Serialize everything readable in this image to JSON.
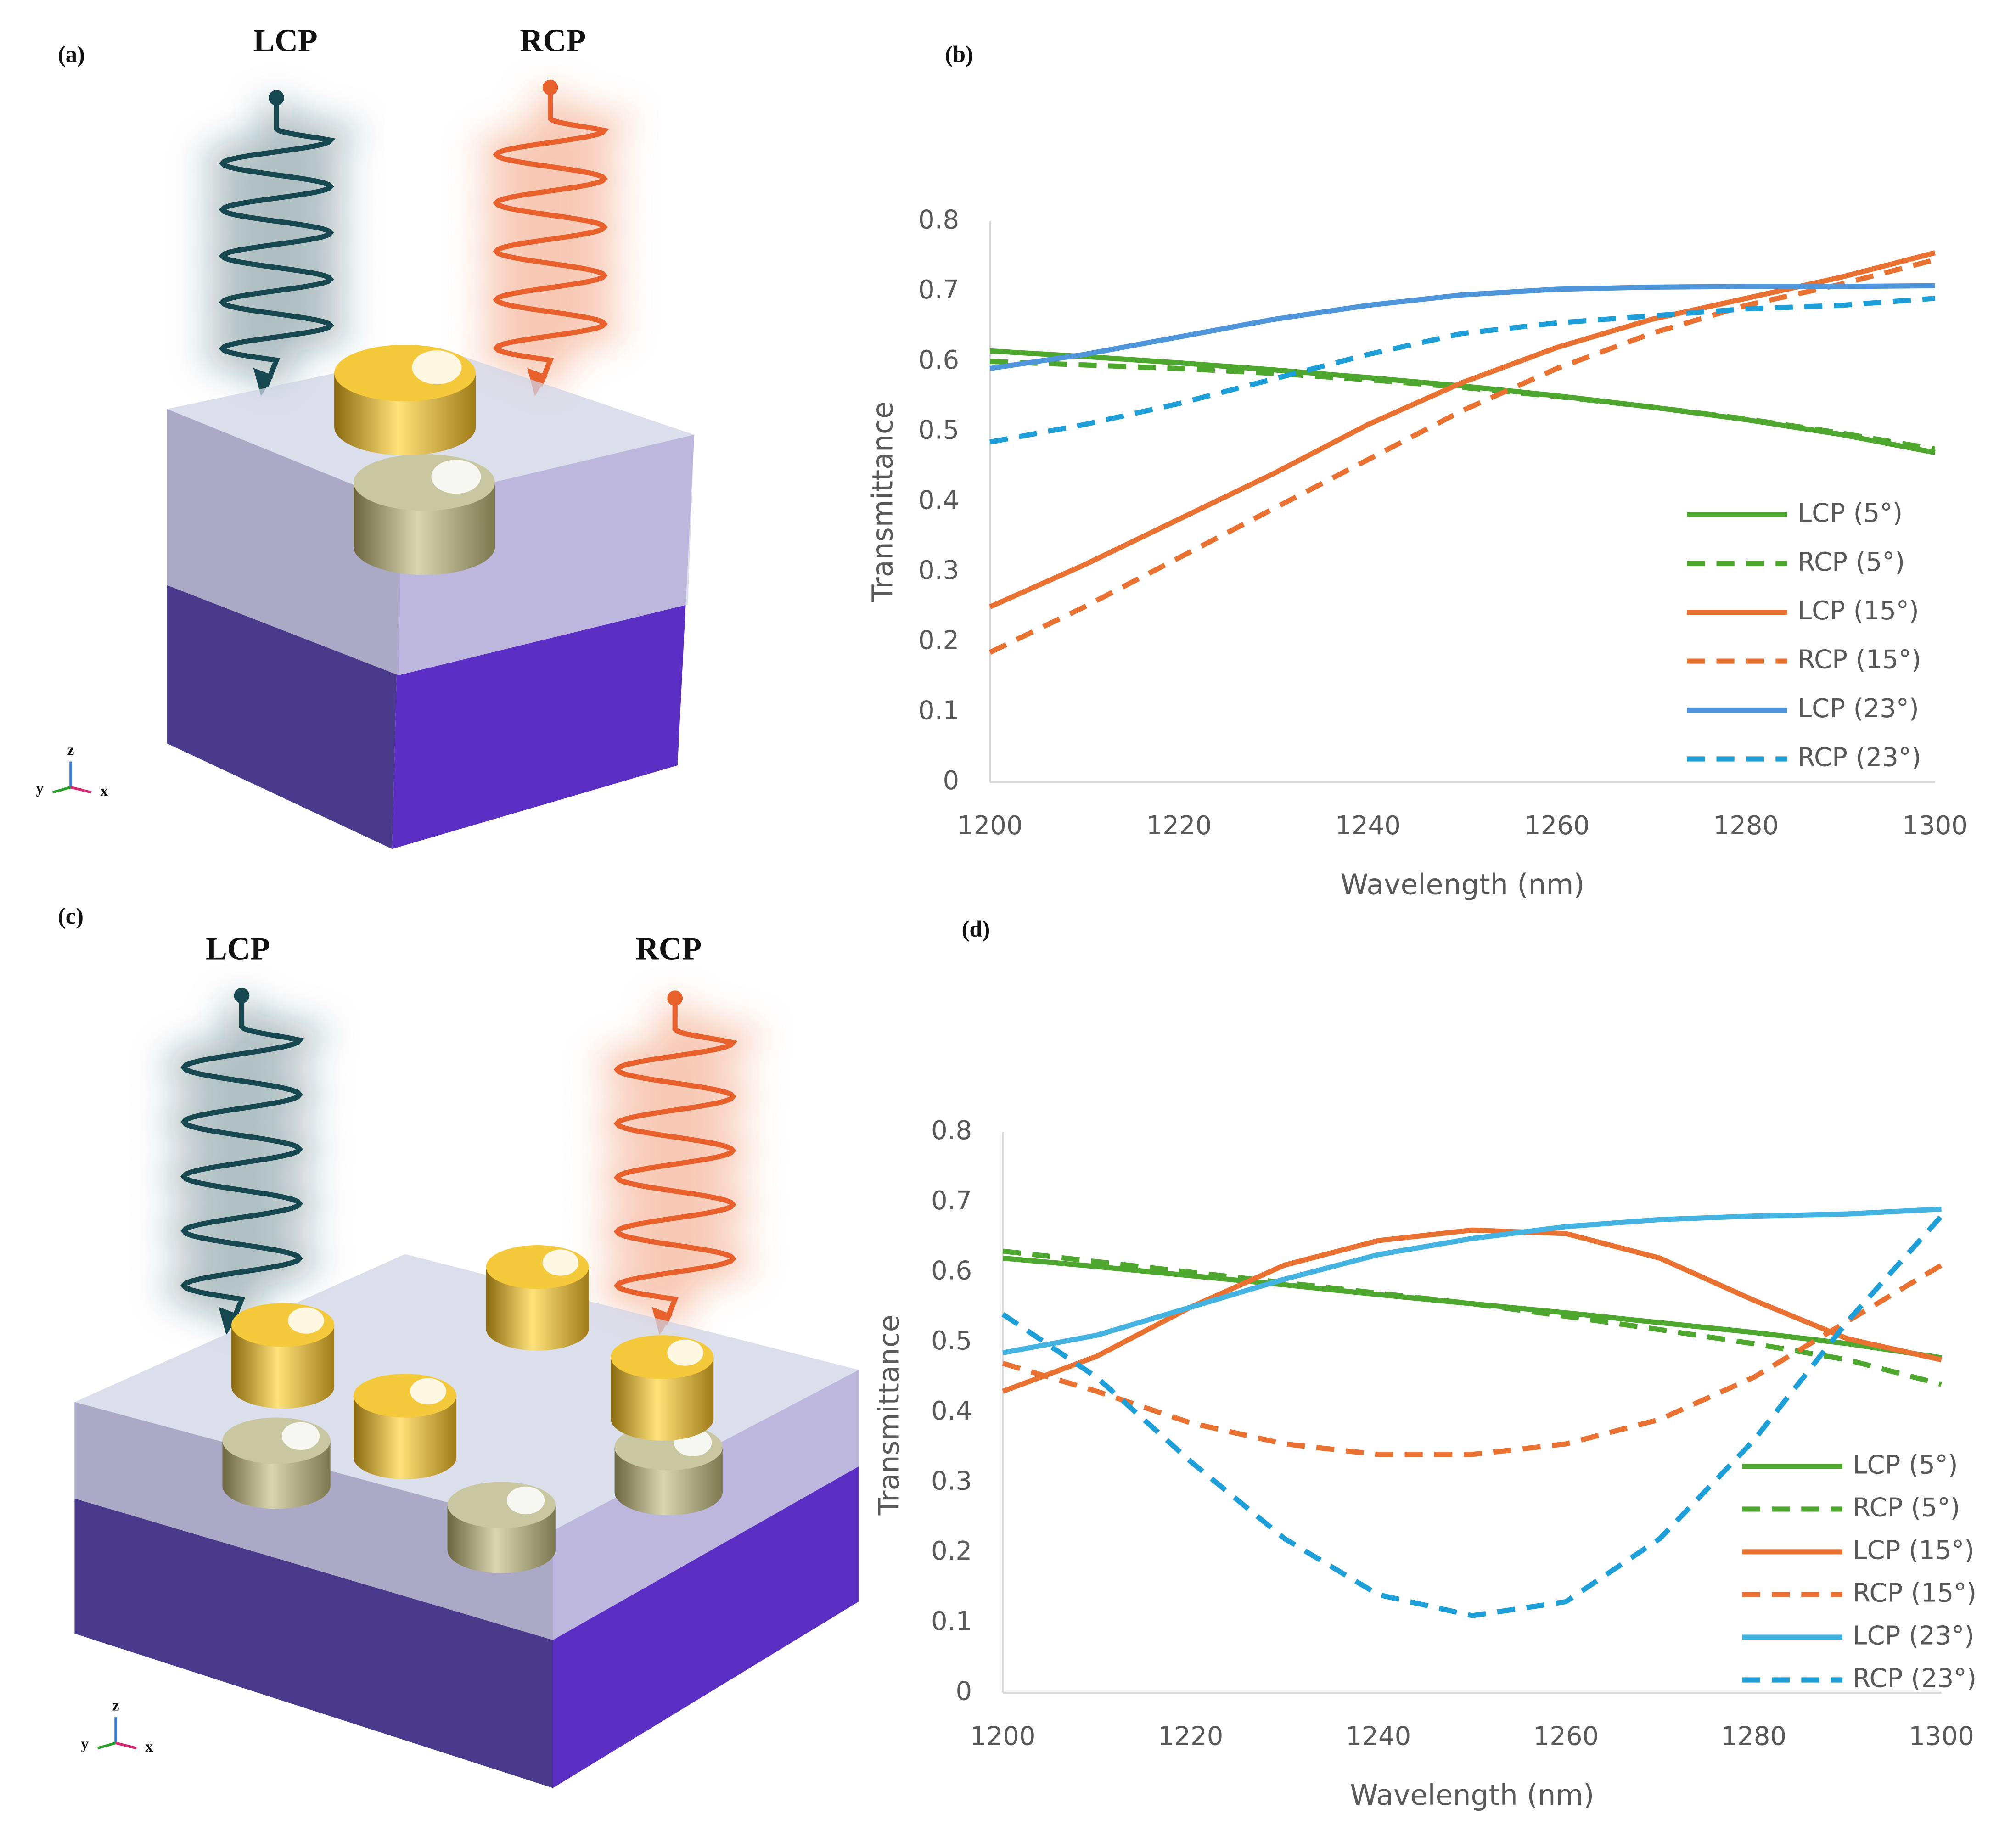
{
  "diagrams": [
    {
      "label": "(a)",
      "beams": [
        "LCP",
        "RCP"
      ],
      "axes": [
        "z",
        "y",
        "x"
      ]
    },
    {
      "label": "(c)",
      "beams": [
        "LCP",
        "RCP"
      ],
      "axes": [
        "z",
        "y",
        "x"
      ]
    }
  ],
  "chart_data": [
    {
      "type": "line",
      "panel_label": "(b)",
      "x_label": "Wavelength (nm)",
      "y_label": "Transmittance",
      "x": [
        1200,
        1210,
        1220,
        1230,
        1240,
        1250,
        1260,
        1270,
        1280,
        1290,
        1300
      ],
      "xlim": [
        1200,
        1300
      ],
      "xticks": [
        1200,
        1220,
        1240,
        1260,
        1280,
        1300
      ],
      "ylim": [
        0,
        0.8
      ],
      "yticks": [
        0,
        0.1,
        0.2,
        0.3,
        0.4,
        0.5,
        0.6,
        0.7,
        0.8
      ],
      "legend": "lower right",
      "series": [
        {
          "name": "LCP (5°)",
          "color": "#4ea72e",
          "style": "solid",
          "values": [
            0.615,
            0.607,
            0.598,
            0.588,
            0.577,
            0.565,
            0.551,
            0.535,
            0.517,
            0.496,
            0.47
          ]
        },
        {
          "name": "RCP (5°)",
          "color": "#4ea72e",
          "style": "dashed",
          "values": [
            0.6,
            0.595,
            0.59,
            0.583,
            0.574,
            0.563,
            0.55,
            0.535,
            0.518,
            0.498,
            0.475
          ]
        },
        {
          "name": "LCP (15°)",
          "color": "#e97132",
          "style": "solid",
          "values": [
            0.25,
            0.31,
            0.375,
            0.44,
            0.51,
            0.57,
            0.62,
            0.66,
            0.69,
            0.72,
            0.755
          ]
        },
        {
          "name": "RCP (15°)",
          "color": "#e97132",
          "style": "dashed",
          "values": [
            0.185,
            0.25,
            0.32,
            0.39,
            0.46,
            0.53,
            0.59,
            0.64,
            0.68,
            0.71,
            0.745
          ]
        },
        {
          "name": "LCP (23°)",
          "color": "#4e95d9",
          "style": "solid",
          "values": [
            0.59,
            0.61,
            0.635,
            0.66,
            0.68,
            0.695,
            0.703,
            0.706,
            0.707,
            0.707,
            0.708
          ]
        },
        {
          "name": "RCP (23°)",
          "color": "#1f9fd8",
          "style": "dashed",
          "values": [
            0.485,
            0.51,
            0.54,
            0.575,
            0.61,
            0.64,
            0.655,
            0.665,
            0.675,
            0.68,
            0.69
          ]
        }
      ]
    },
    {
      "type": "line",
      "panel_label": "(d)",
      "x_label": "Wavelength (nm)",
      "y_label": "Transmittance",
      "x": [
        1200,
        1210,
        1220,
        1230,
        1240,
        1250,
        1260,
        1270,
        1280,
        1290,
        1300
      ],
      "xlim": [
        1200,
        1300
      ],
      "xticks": [
        1200,
        1220,
        1240,
        1260,
        1280,
        1300
      ],
      "ylim": [
        0,
        0.8
      ],
      "yticks": [
        0,
        0.1,
        0.2,
        0.3,
        0.4,
        0.5,
        0.6,
        0.7,
        0.8
      ],
      "legend": "lower right",
      "series": [
        {
          "name": "LCP (5°)",
          "color": "#4ea72e",
          "style": "solid",
          "values": [
            0.62,
            0.608,
            0.595,
            0.582,
            0.568,
            0.555,
            0.542,
            0.528,
            0.514,
            0.498,
            0.478
          ]
        },
        {
          "name": "RCP (5°)",
          "color": "#4ea72e",
          "style": "dashed",
          "values": [
            0.63,
            0.615,
            0.6,
            0.585,
            0.57,
            0.555,
            0.537,
            0.518,
            0.498,
            0.475,
            0.44
          ]
        },
        {
          "name": "LCP (15°)",
          "color": "#e97132",
          "style": "solid",
          "values": [
            0.43,
            0.48,
            0.55,
            0.61,
            0.645,
            0.66,
            0.655,
            0.62,
            0.56,
            0.505,
            0.475
          ]
        },
        {
          "name": "RCP (15°)",
          "color": "#e97132",
          "style": "dashed",
          "values": [
            0.47,
            0.43,
            0.385,
            0.355,
            0.34,
            0.34,
            0.355,
            0.39,
            0.45,
            0.53,
            0.61
          ]
        },
        {
          "name": "LCP (23°)",
          "color": "#44b3e1",
          "style": "solid",
          "values": [
            0.485,
            0.51,
            0.55,
            0.59,
            0.625,
            0.648,
            0.665,
            0.675,
            0.68,
            0.683,
            0.69
          ]
        },
        {
          "name": "RCP (23°)",
          "color": "#1f9fd8",
          "style": "dashed",
          "values": [
            0.54,
            0.45,
            0.33,
            0.22,
            0.14,
            0.11,
            0.13,
            0.22,
            0.36,
            0.53,
            0.68
          ]
        }
      ]
    }
  ]
}
